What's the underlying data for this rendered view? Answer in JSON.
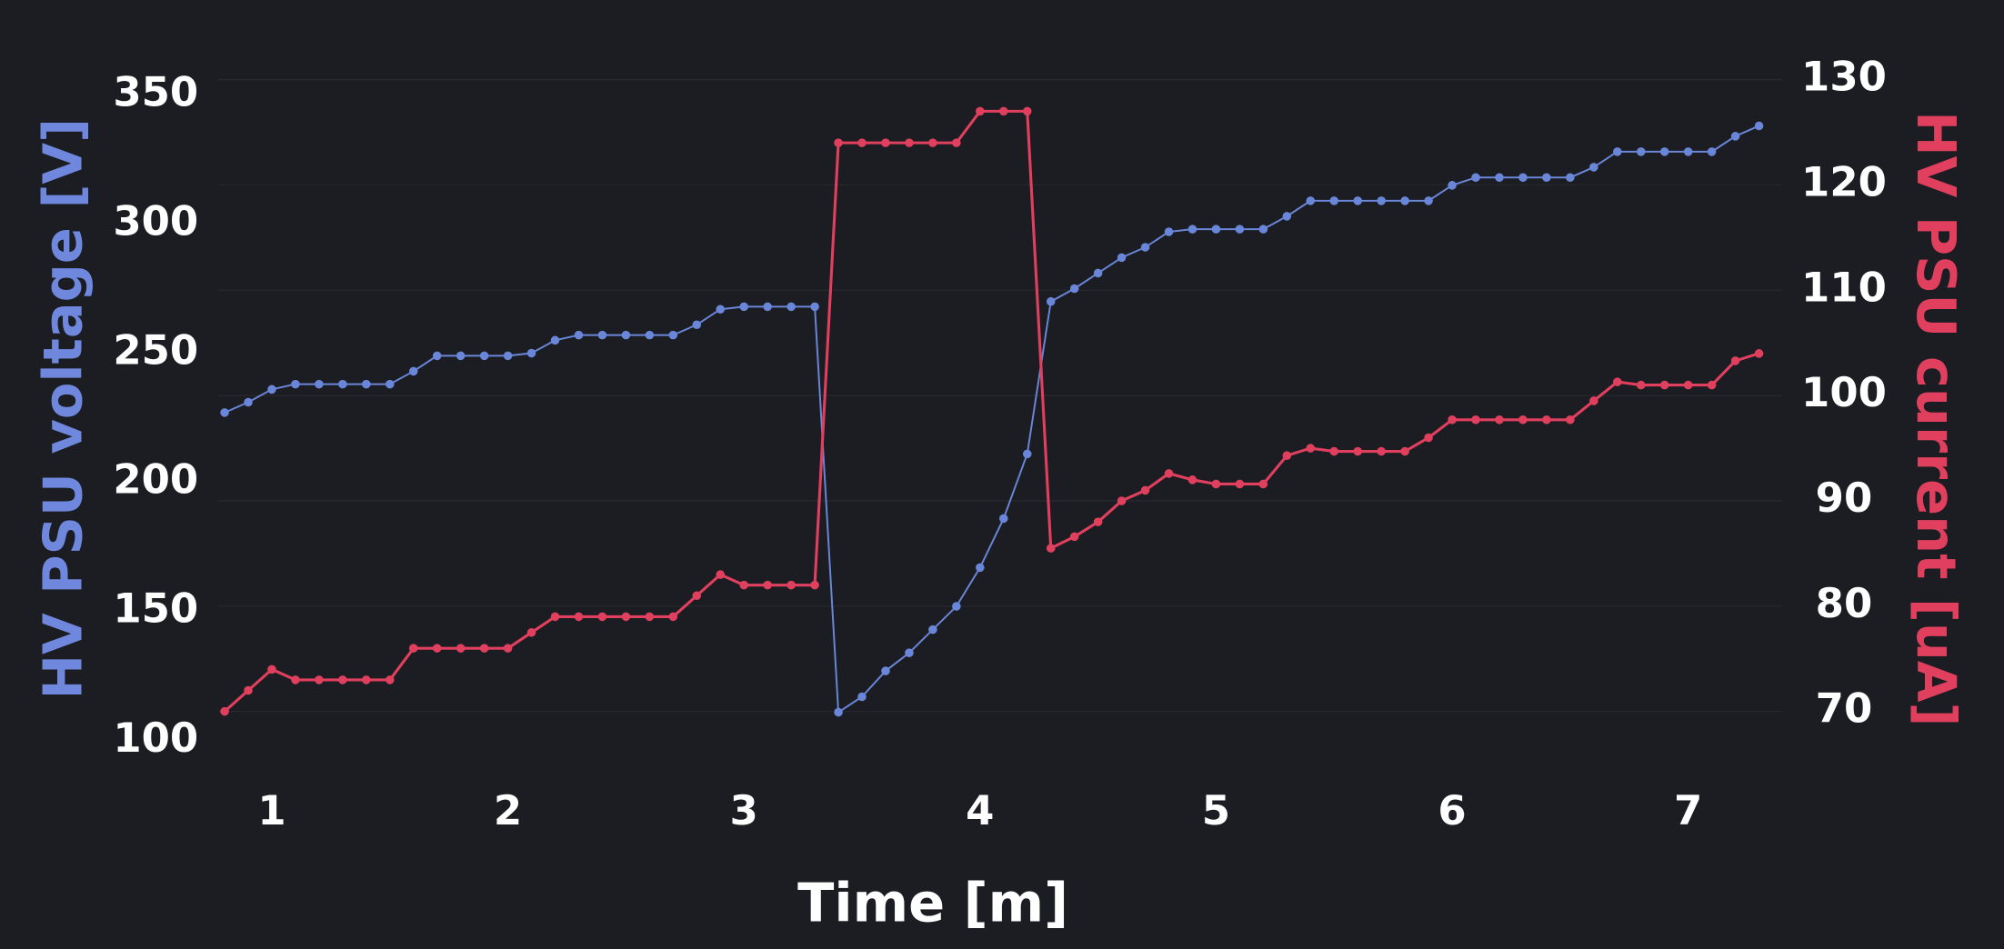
{
  "chart_data": {
    "type": "line",
    "x_label": "Time [m]",
    "y_label": "HV PSU voltage [V]",
    "y2_label": "HV PSU current [uA]",
    "x": [
      0.8,
      0.9,
      1.0,
      1.1,
      1.2,
      1.3,
      1.4,
      1.5,
      1.6,
      1.7,
      1.8,
      1.9,
      2.0,
      2.1,
      2.2,
      2.3,
      2.4,
      2.5,
      2.6,
      2.7,
      2.8,
      2.9,
      3.0,
      3.1,
      3.2,
      3.3,
      3.4,
      3.5,
      3.6,
      3.7,
      3.8,
      3.9,
      4.0,
      4.1,
      4.2,
      4.3,
      4.4,
      4.5,
      4.6,
      4.7,
      4.8,
      4.9,
      5.0,
      5.1,
      5.2,
      5.3,
      5.4,
      5.5,
      5.6,
      5.7,
      5.8,
      5.9,
      6.0,
      6.1,
      6.2,
      6.3,
      6.4,
      6.5,
      6.6,
      6.7,
      6.8,
      6.9,
      7.0,
      7.1,
      7.2,
      7.3
    ],
    "series": [
      {
        "name": "HV PSU voltage [V]",
        "color": "#6a86d8",
        "axis": "y",
        "values": [
          227,
          231,
          236,
          238,
          238,
          238,
          238,
          238,
          243,
          249,
          249,
          249,
          249,
          250,
          255,
          257,
          257,
          257,
          257,
          257,
          261,
          267,
          268,
          268,
          268,
          268,
          111,
          117,
          127,
          134,
          143,
          152,
          167,
          186,
          211,
          270,
          275,
          281,
          287,
          291,
          297,
          298,
          298,
          298,
          298,
          303,
          309,
          309,
          309,
          309,
          309,
          309,
          315,
          318,
          318,
          318,
          318,
          318,
          322,
          328,
          328,
          328,
          328,
          328,
          334,
          338
        ]
      },
      {
        "name": "HV PSU current [uA]",
        "color": "#e0405e",
        "axis": "y2",
        "values": [
          70,
          72,
          74,
          73,
          73,
          73,
          73,
          73,
          76,
          76,
          76,
          76,
          76,
          77.5,
          79,
          79,
          79,
          79,
          79,
          79,
          81,
          83,
          82,
          82,
          82,
          82,
          124,
          124,
          124,
          124,
          124,
          124,
          127,
          127,
          127,
          85.5,
          86.6,
          88,
          90,
          91,
          92.6,
          92,
          91.6,
          91.6,
          91.6,
          94.3,
          95,
          94.7,
          94.7,
          94.7,
          94.7,
          96,
          97.7,
          97.7,
          97.7,
          97.7,
          97.7,
          97.7,
          99.5,
          101.3,
          101,
          101,
          101,
          101,
          103.3,
          104
        ]
      }
    ],
    "xlim": [
      0.77,
      7.4
    ],
    "xticks": [
      1,
      2,
      3,
      4,
      5,
      6,
      7
    ],
    "ylim": [
      95,
      362
    ],
    "yticks": [
      100,
      150,
      200,
      250,
      300,
      350
    ],
    "y2lim": [
      66,
      131.5
    ],
    "y2ticks": [
      70,
      80,
      90,
      100,
      110,
      120,
      130
    ],
    "grid": true
  }
}
